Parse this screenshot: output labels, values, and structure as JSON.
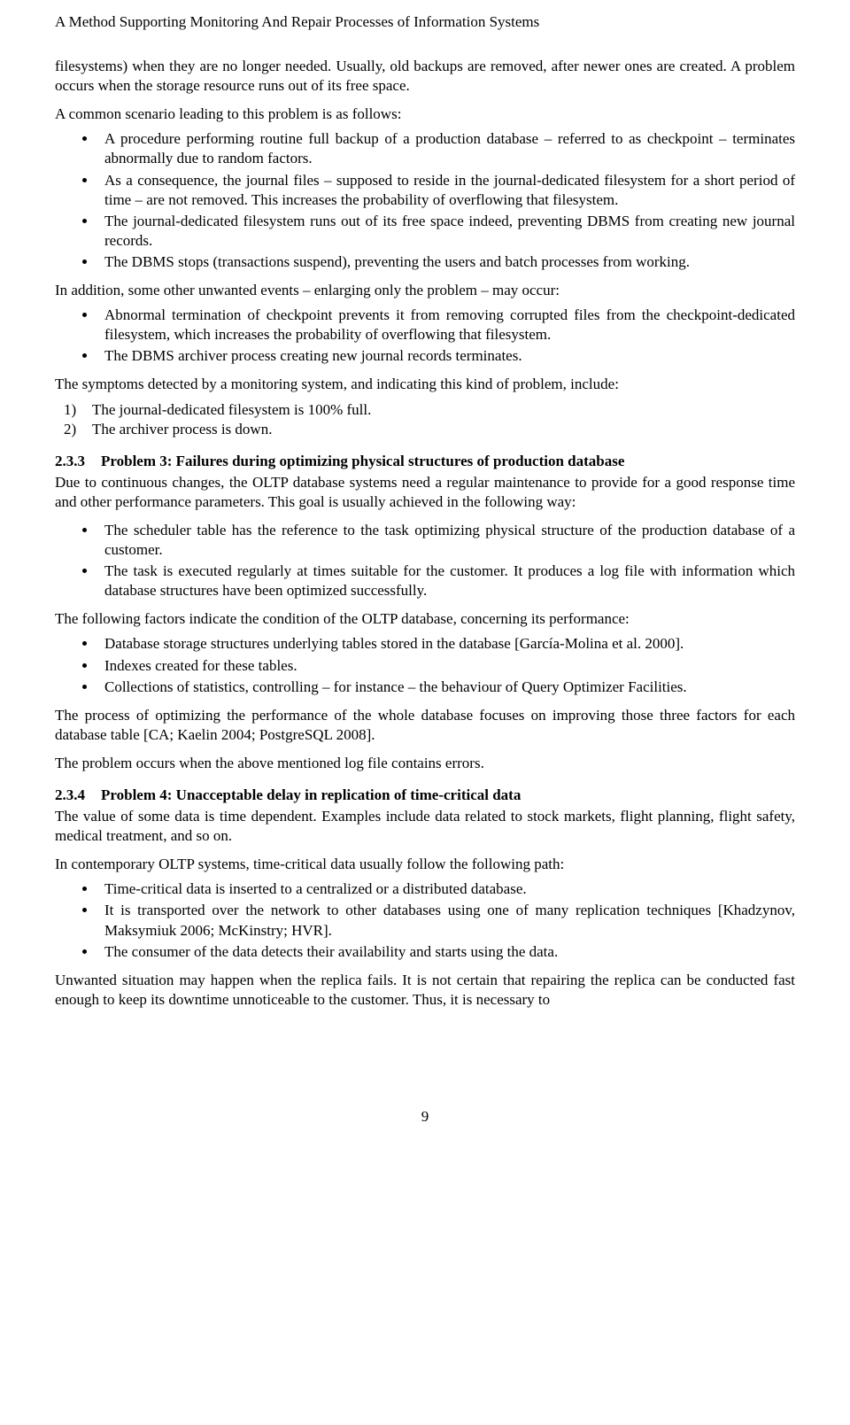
{
  "runningHead": "A Method Supporting Monitoring And Repair Processes of Information Systems",
  "p1": "filesystems) when they are no longer needed. Usually, old backups are removed, after newer ones are created. A problem occurs when the storage resource runs out of its free space.",
  "p2": "A common scenario leading to this problem is as follows:",
  "b1": [
    "A procedure performing routine full backup of a production database – referred to as checkpoint – terminates abnormally due to random factors.",
    "As a consequence, the journal files – supposed to reside in the journal-dedicated filesystem for a short period of time – are not removed. This increases the probability of overflowing that filesystem.",
    "The journal-dedicated filesystem runs out of its free space indeed, preventing DBMS from creating new journal records.",
    "The DBMS stops (transactions suspend), preventing the users and batch processes from working."
  ],
  "p3": "In addition, some other unwanted events – enlarging only the problem – may occur:",
  "b2": [
    "Abnormal termination of checkpoint prevents it from removing corrupted files from the checkpoint-dedicated filesystem, which increases the probability of overflowing that filesystem.",
    "The DBMS archiver process creating new journal records terminates."
  ],
  "p4": "The symptoms detected by a monitoring system, and indicating this kind of problem, include:",
  "s1": [
    {
      "n": "1)",
      "t": "The journal-dedicated filesystem is 100% full."
    },
    {
      "n": "2)",
      "t": "The archiver process is down."
    }
  ],
  "h233n": "2.3.3",
  "h233t": "Problem 3: Failures during optimizing physical structures of production database",
  "p5": "Due to continuous changes, the OLTP database systems need a regular maintenance to provide for a good response time and other performance parameters. This goal is usually achieved in the following way:",
  "b3": [
    "The scheduler table has the reference to the task optimizing physical structure of the production database of a customer.",
    "The task is executed regularly at times suitable for the customer. It produces a log file with information which database structures have been optimized successfully."
  ],
  "p6": "The following factors indicate the condition of the OLTP database, concerning its performance:",
  "b4": [
    "Database storage structures underlying tables stored in the database [García-Molina et al. 2000].",
    "Indexes created for these tables.",
    "Collections of statistics, controlling – for instance – the behaviour of Query Optimizer Facilities."
  ],
  "p7": "The process of optimizing the performance of the whole database focuses on improving those three factors for each database table [CA; Kaelin 2004; PostgreSQL 2008].",
  "p8": "The problem occurs when the above mentioned log file contains errors.",
  "h234n": "2.3.4",
  "h234t": "Problem 4: Unacceptable delay in replication of time-critical data",
  "p9": "The value of some data is time dependent. Examples include data related to stock markets, flight planning, flight safety, medical treatment, and so on.",
  "p10": "In contemporary OLTP systems, time-critical data usually follow the following path:",
  "b5": [
    "Time-critical data is inserted to a centralized or a distributed database.",
    "It is transported over the network to other databases using one of many replication techniques [Khadzynov, Maksymiuk 2006; McKinstry; HVR].",
    "The consumer of the data detects their availability and starts using the data."
  ],
  "p11": "Unwanted situation may happen when the replica fails. It is not certain that repairing the replica can be conducted fast enough to keep its downtime unnoticeable to the customer. Thus, it is necessary to",
  "pageNum": "9"
}
